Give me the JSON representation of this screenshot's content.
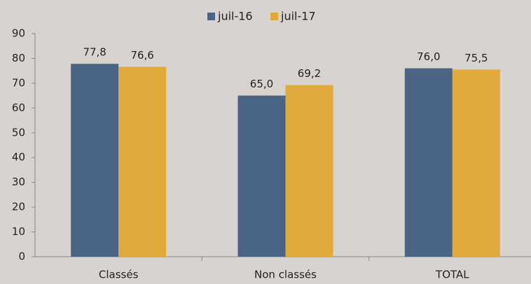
{
  "chart_data": {
    "type": "bar",
    "categories": [
      "Classés",
      "Non classés",
      "TOTAL"
    ],
    "series": [
      {
        "name": "juil-16",
        "color": "#4a6485",
        "values": [
          77.8,
          65.0,
          76.0
        ],
        "value_labels": [
          "77,8",
          "65,0",
          "76,0"
        ]
      },
      {
        "name": "juil-17",
        "color": "#e0a93b",
        "values": [
          76.6,
          69.2,
          75.5
        ],
        "value_labels": [
          "76,6",
          "69,2",
          "75,5"
        ]
      }
    ],
    "ylim": [
      0,
      90
    ],
    "yticks": [
      0,
      10,
      20,
      30,
      40,
      50,
      60,
      70,
      80,
      90
    ],
    "grid": false,
    "legend": "top"
  }
}
